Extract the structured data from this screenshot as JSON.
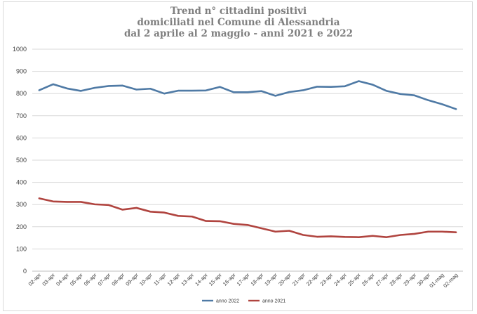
{
  "chart_data": {
    "type": "line",
    "title_lines": [
      "Trend n° cittadini positivi",
      "domiciliati nel Comune di Alessandria",
      "dal 2 aprile al 2 maggio - anni 2021 e 2022"
    ],
    "x": [
      "02-apr",
      "03-apr",
      "04-apr",
      "05-apr",
      "06-apr",
      "07-apr",
      "08-apr",
      "09-apr",
      "10-apr",
      "11-apr",
      "12-apr",
      "13-apr",
      "14-apr",
      "15-apr",
      "16-apr",
      "17-apr",
      "18-apr",
      "19-apr",
      "20-apr",
      "21-apr",
      "22-apr",
      "23-apr",
      "24-apr",
      "25-apr",
      "26-apr",
      "27-apr",
      "28-apr",
      "29-apr",
      "30-apr",
      "01-mag",
      "02-mag"
    ],
    "series": [
      {
        "name": "anno 2022",
        "color": "#4f7aa5",
        "values": [
          815,
          842,
          823,
          812,
          826,
          834,
          836,
          818,
          822,
          800,
          813,
          813,
          814,
          830,
          806,
          806,
          811,
          790,
          807,
          815,
          831,
          830,
          833,
          856,
          840,
          812,
          798,
          792,
          770,
          752,
          730
        ]
      },
      {
        "name": "anno 2021",
        "color": "#b0443f",
        "values": [
          328,
          314,
          312,
          312,
          301,
          298,
          277,
          285,
          268,
          264,
          249,
          246,
          226,
          225,
          213,
          208,
          193,
          178,
          182,
          163,
          155,
          157,
          154,
          153,
          159,
          153,
          163,
          168,
          178,
          178,
          175
        ]
      }
    ],
    "yticks": [
      "0",
      "100",
      "200",
      "300",
      "400",
      "500",
      "600",
      "700",
      "800",
      "900",
      "1000"
    ],
    "ylim": [
      0,
      1000
    ],
    "grid": true,
    "legend_position": "bottom"
  }
}
